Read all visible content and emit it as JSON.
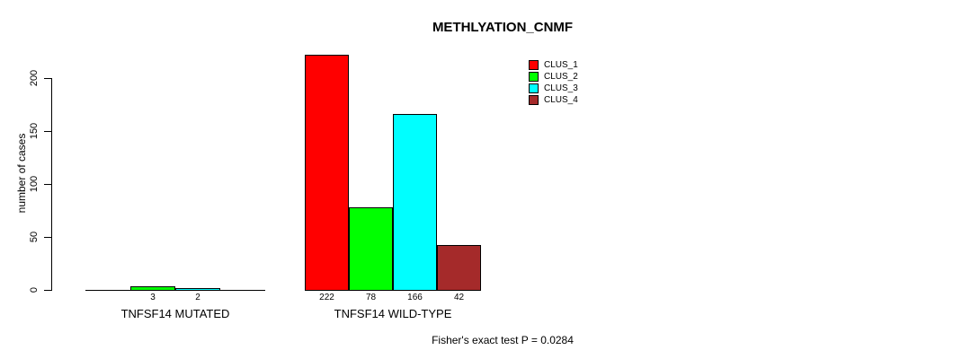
{
  "chart_data": {
    "type": "bar",
    "title": "METHLYATION_CNMF",
    "ylabel": "number of cases",
    "xlabel": "",
    "footnote": "Fisher's exact test P = 0.0284",
    "categories": [
      "TNFSF14 MUTATED",
      "TNFSF14 WILD-TYPE"
    ],
    "series": [
      {
        "name": "CLUS_1",
        "color": "#FF0000",
        "values": [
          0,
          222
        ]
      },
      {
        "name": "CLUS_2",
        "color": "#00FF00",
        "values": [
          3,
          78
        ]
      },
      {
        "name": "CLUS_3",
        "color": "#00FFFF",
        "values": [
          2,
          166
        ]
      },
      {
        "name": "CLUS_4",
        "color": "#A52A2A",
        "values": [
          0,
          42
        ]
      }
    ],
    "bar_count_labels": [
      [
        "",
        "3",
        "2",
        ""
      ],
      [
        "222",
        "78",
        "166",
        "42"
      ]
    ],
    "yticks": [
      0,
      50,
      100,
      150,
      200
    ],
    "ylim": [
      0,
      222
    ],
    "grid": false,
    "legend_position": "top-right",
    "colors": {
      "axis": "#000000",
      "text": "#000000",
      "background": "#FFFFFF"
    }
  }
}
